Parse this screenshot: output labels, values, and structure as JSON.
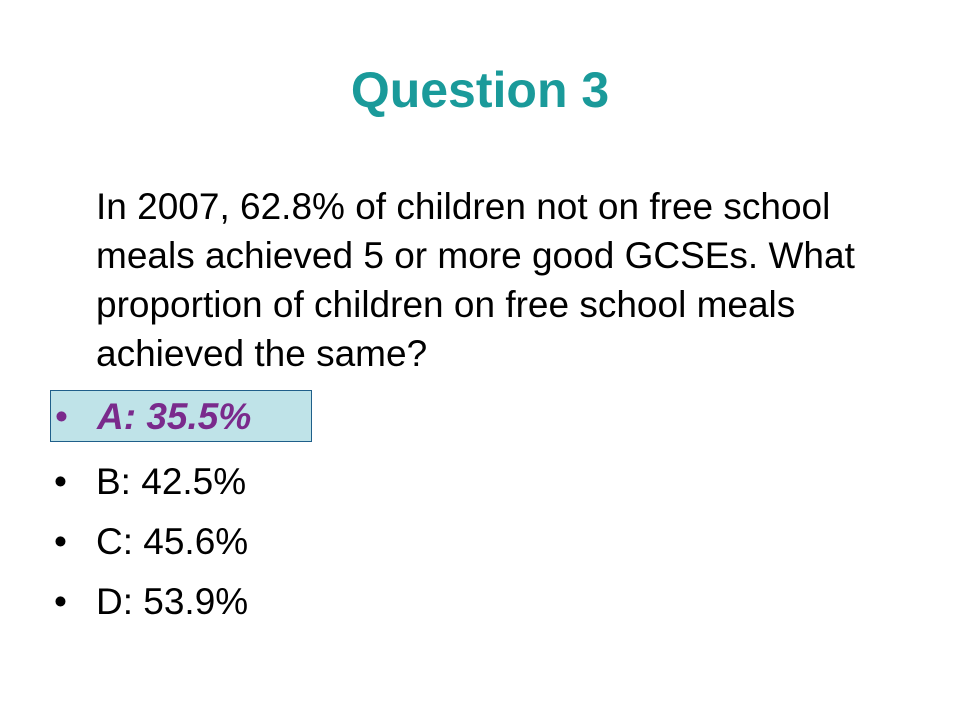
{
  "slide": {
    "title": "Question 3",
    "question": "In 2007, 62.8% of children not on free school meals achieved 5 or more good GCSEs. What proportion of children on free school meals achieved the same?",
    "bullet": "•",
    "options": [
      {
        "label": "A: 35.5%",
        "highlighted": true
      },
      {
        "label": "B: 42.5%",
        "highlighted": false
      },
      {
        "label": "C: 45.6%",
        "highlighted": false
      },
      {
        "label": "D: 53.9%",
        "highlighted": false
      }
    ]
  },
  "colors": {
    "title": "#1a9a9a",
    "answer_text": "#7a2a8c",
    "answer_highlight": "#bfe3e8",
    "answer_border": "#1f5f8a",
    "text": "#000000",
    "background": "#ffffff"
  }
}
